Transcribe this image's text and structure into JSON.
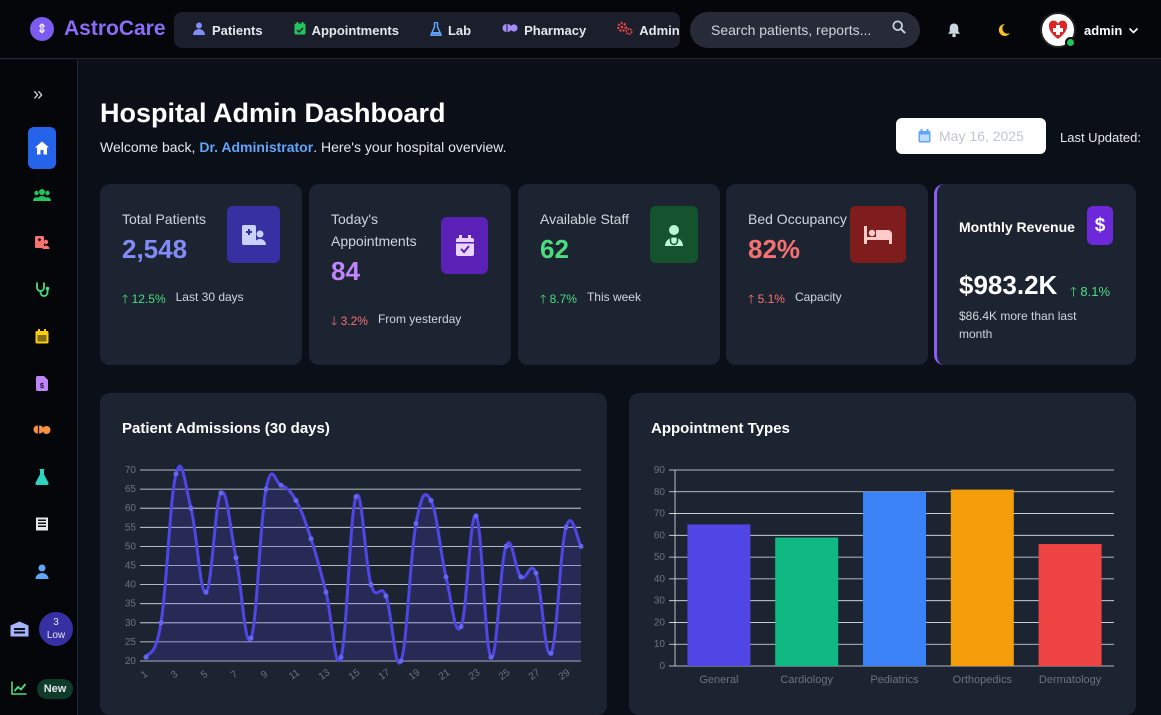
{
  "app": {
    "name": "AstroCare"
  },
  "nav": [
    {
      "label": "Patients",
      "icon": "users-icon",
      "color": "#818cf8"
    },
    {
      "label": "Appointments",
      "icon": "calendar-check-icon",
      "color": "#22c55e"
    },
    {
      "label": "Lab",
      "icon": "flask-icon",
      "color": "#60a5fa"
    },
    {
      "label": "Pharmacy",
      "icon": "pills-icon",
      "color": "#a78bfa"
    },
    {
      "label": "Admin",
      "icon": "cogs-icon",
      "color": "#ef4444"
    }
  ],
  "search": {
    "placeholder": "Search patients, reports..."
  },
  "user": {
    "name": "admin"
  },
  "sidebar": {
    "badge_count": "3",
    "badge_label": "Low",
    "new_label": "New"
  },
  "page": {
    "title": "Hospital Admin Dashboard",
    "welcome_prefix": "Welcome back, ",
    "welcome_name": "Dr. Administrator",
    "welcome_suffix": ". Here's your hospital overview.",
    "date": "May 16, 2025",
    "last_updated": "Last Updated:"
  },
  "stats": [
    {
      "label": "Total Patients",
      "value": "2,548",
      "change": "12.5%",
      "dir": "up",
      "note": "Last 30 days",
      "color": "#818cf8",
      "icon": "patient-record-icon",
      "icon_bg": "#3730a3"
    },
    {
      "label": "Today's Appointments",
      "value": "84",
      "change": "3.2%",
      "dir": "down",
      "note": "From yesterday",
      "color": "#c084fc",
      "icon": "calendar-check-icon",
      "icon_bg": "#5b21b6"
    },
    {
      "label": "Available Staff",
      "value": "62",
      "change": "8.7%",
      "dir": "up",
      "note": "This week",
      "color": "#4ade80",
      "icon": "doctor-icon",
      "icon_bg": "#14532d"
    },
    {
      "label": "Bed Occupancy",
      "value": "82%",
      "change": "5.1%",
      "dir": "up-red",
      "note": "Capacity",
      "color": "#f87171",
      "icon": "bed-icon",
      "icon_bg": "#7f1d1d"
    }
  ],
  "revenue": {
    "label": "Monthly Revenue",
    "value": "$983.2K",
    "change": "8.1%",
    "note": "$86.4K more than last month"
  },
  "admissions": {
    "title": "Patient Admissions (30 days)",
    "chart_data": {
      "type": "line",
      "x": [
        1,
        2,
        3,
        4,
        5,
        6,
        7,
        8,
        9,
        10,
        11,
        12,
        13,
        14,
        15,
        16,
        17,
        18,
        19,
        20,
        21,
        22,
        23,
        24,
        25,
        26,
        27,
        28,
        29,
        30
      ],
      "x_tick_labels": [
        "1",
        "3",
        "5",
        "7",
        "9",
        "11",
        "13",
        "15",
        "17",
        "19",
        "21",
        "23",
        "25",
        "27",
        "29"
      ],
      "values": [
        21,
        30,
        69,
        60,
        38,
        64,
        47,
        26,
        65,
        66,
        62,
        52,
        38,
        21,
        63,
        40,
        37,
        20,
        56,
        62,
        42,
        29,
        58,
        21,
        50,
        42,
        43,
        22,
        55,
        50
      ],
      "ylim": [
        20,
        70
      ],
      "yticks": [
        20,
        25,
        30,
        35,
        40,
        45,
        50,
        55,
        60,
        65,
        70
      ],
      "color": "#5046e5"
    }
  },
  "appointments": {
    "title": "Appointment Types",
    "chart_data": {
      "type": "bar",
      "categories": [
        "General",
        "Cardiology",
        "Pediatrics",
        "Orthopedics",
        "Dermatology"
      ],
      "values": [
        65,
        59,
        80,
        81,
        56
      ],
      "colors": [
        "#4f46e5",
        "#10b981",
        "#3b82f6",
        "#f59e0b",
        "#ef4444"
      ],
      "ylim": [
        0,
        90
      ],
      "yticks": [
        0,
        10,
        20,
        30,
        40,
        50,
        60,
        70,
        80,
        90
      ]
    }
  }
}
